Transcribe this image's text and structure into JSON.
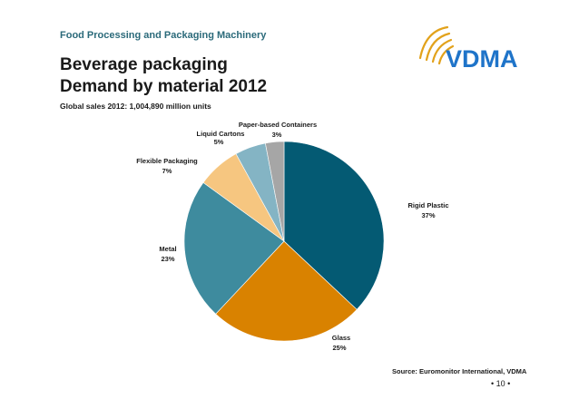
{
  "header": {
    "section": "Food Processing and Packaging Machinery",
    "title_line1": "Beverage packaging",
    "title_line2": "Demand by material  2012",
    "subtitle": "Global sales 2012: 1,004,890 million units"
  },
  "logo": {
    "text": "VDMA",
    "color": "#1f74c9",
    "arc_color": "#e2a21b"
  },
  "footer": {
    "source": "Source: Euromonitor International, VDMA",
    "page": "• 10 •"
  },
  "chart_data": {
    "type": "pie",
    "title": "Beverage packaging Demand by material 2012",
    "unit": "%",
    "slices": [
      {
        "label": "Rigid Plastic",
        "value": 37,
        "value_label": "37%",
        "color": "#045a73"
      },
      {
        "label": "Glass",
        "value": 25,
        "value_label": "25%",
        "color": "#d98200"
      },
      {
        "label": "Metal",
        "value": 23,
        "value_label": "23%",
        "color": "#3e8b9e"
      },
      {
        "label": "Flexible Packaging",
        "value": 7,
        "value_label": "7%",
        "color": "#f6c680"
      },
      {
        "label": "Liquid Cartons",
        "value": 5,
        "value_label": "5%",
        "color": "#84b4c4"
      },
      {
        "label": "Paper-based Containers",
        "value": 3,
        "value_label": "3%",
        "color": "#a6a6a6"
      }
    ]
  }
}
